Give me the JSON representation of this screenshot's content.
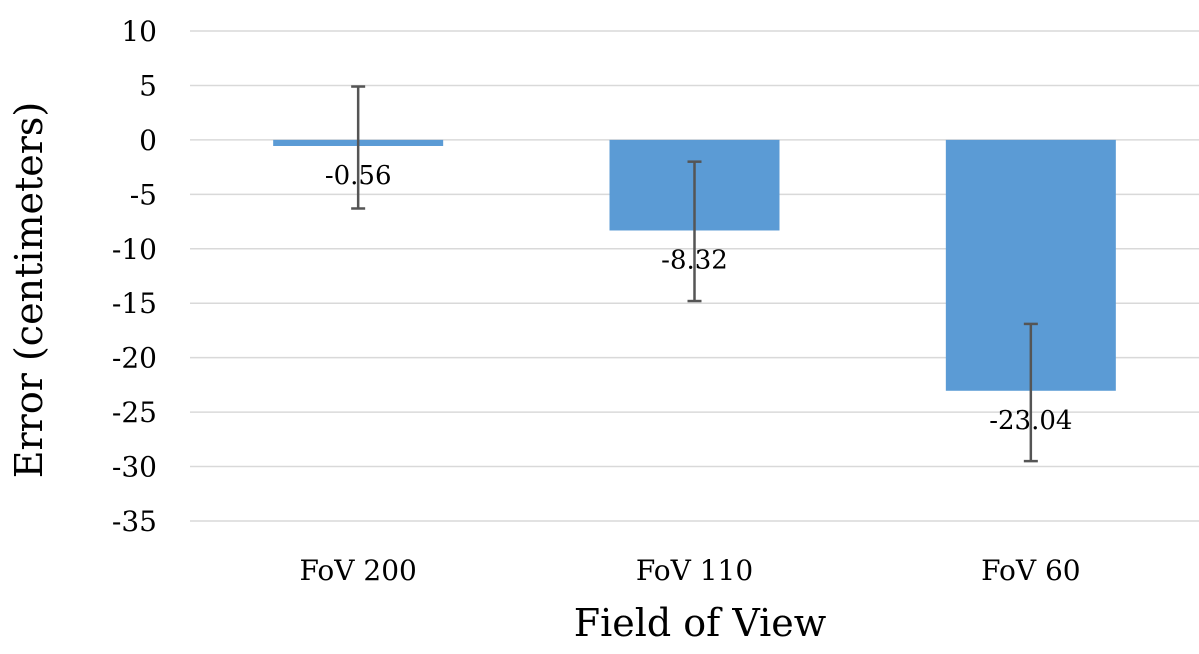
{
  "chart_data": {
    "type": "bar",
    "title": "",
    "xlabel": "Field of View",
    "ylabel": "Error (centimeters)",
    "categories": [
      "FoV 200",
      "FoV 110",
      "FoV 60"
    ],
    "values": [
      -0.56,
      -8.32,
      -23.04
    ],
    "data_labels": [
      "-0.56",
      "-8.32",
      "-23.04"
    ],
    "error_bars": [
      {
        "low": -6.3,
        "high": 4.9
      },
      {
        "low": -14.8,
        "high": -2.0
      },
      {
        "low": -29.5,
        "high": -16.9
      }
    ],
    "ylim": [
      -35,
      10
    ],
    "yticks": [
      10,
      5,
      0,
      -5,
      -10,
      -15,
      -20,
      -25,
      -30,
      -35
    ],
    "ytick_labels": [
      "10",
      "5",
      "0",
      "-5",
      "-10",
      "-15",
      "-20",
      "-25",
      "-30",
      "-35"
    ],
    "grid": true,
    "legend": "none",
    "colors": {
      "bar": "#5b9bd5",
      "error_bar": "#555555",
      "grid": "#d9d9d9"
    }
  }
}
